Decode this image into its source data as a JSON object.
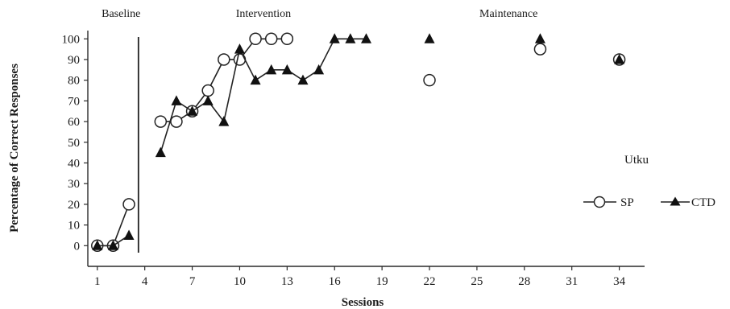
{
  "chart_data": {
    "type": "line",
    "xlabel": "Sessions",
    "ylabel": "Percentage of Correct Responses",
    "xlim": [
      0.4,
      35.6
    ],
    "ylim": [
      -10,
      104
    ],
    "xticks": [
      1,
      4,
      7,
      10,
      13,
      16,
      19,
      22,
      25,
      28,
      31,
      34
    ],
    "yticks": [
      0,
      10,
      20,
      30,
      40,
      50,
      60,
      70,
      80,
      90,
      100
    ],
    "grid": false,
    "participant": "Utku",
    "phase_change_after_session": 3.6,
    "phases": [
      {
        "label": "Baseline",
        "x": 2.5
      },
      {
        "label": "Intervention",
        "x": 11.5
      },
      {
        "label": "Maintenance",
        "x": 27
      }
    ],
    "legend": {
      "position": "right"
    },
    "series": [
      {
        "name": "SP",
        "marker": "open-circle",
        "segments": [
          [
            [
              1,
              0
            ],
            [
              2,
              0
            ],
            [
              3,
              20
            ]
          ],
          [
            [
              5,
              60
            ],
            [
              6,
              60
            ],
            [
              7,
              65
            ],
            [
              8,
              75
            ],
            [
              9,
              90
            ],
            [
              10,
              90
            ],
            [
              11,
              100
            ],
            [
              12,
              100
            ],
            [
              13,
              100
            ]
          ],
          [
            [
              22,
              80
            ]
          ],
          [
            [
              29,
              95
            ]
          ],
          [
            [
              34,
              90
            ]
          ]
        ]
      },
      {
        "name": "CTD",
        "marker": "filled-triangle",
        "segments": [
          [
            [
              1,
              0
            ],
            [
              2,
              0
            ],
            [
              3,
              5
            ]
          ],
          [
            [
              5,
              45
            ],
            [
              6,
              70
            ],
            [
              7,
              65
            ],
            [
              8,
              70
            ],
            [
              9,
              60
            ],
            [
              10,
              95
            ],
            [
              11,
              80
            ],
            [
              12,
              85
            ],
            [
              13,
              85
            ],
            [
              14,
              80
            ],
            [
              15,
              85
            ],
            [
              16,
              100
            ],
            [
              17,
              100
            ],
            [
              18,
              100
            ]
          ],
          [
            [
              22,
              100
            ]
          ],
          [
            [
              29,
              100
            ]
          ],
          [
            [
              34,
              90
            ]
          ]
        ]
      }
    ]
  }
}
